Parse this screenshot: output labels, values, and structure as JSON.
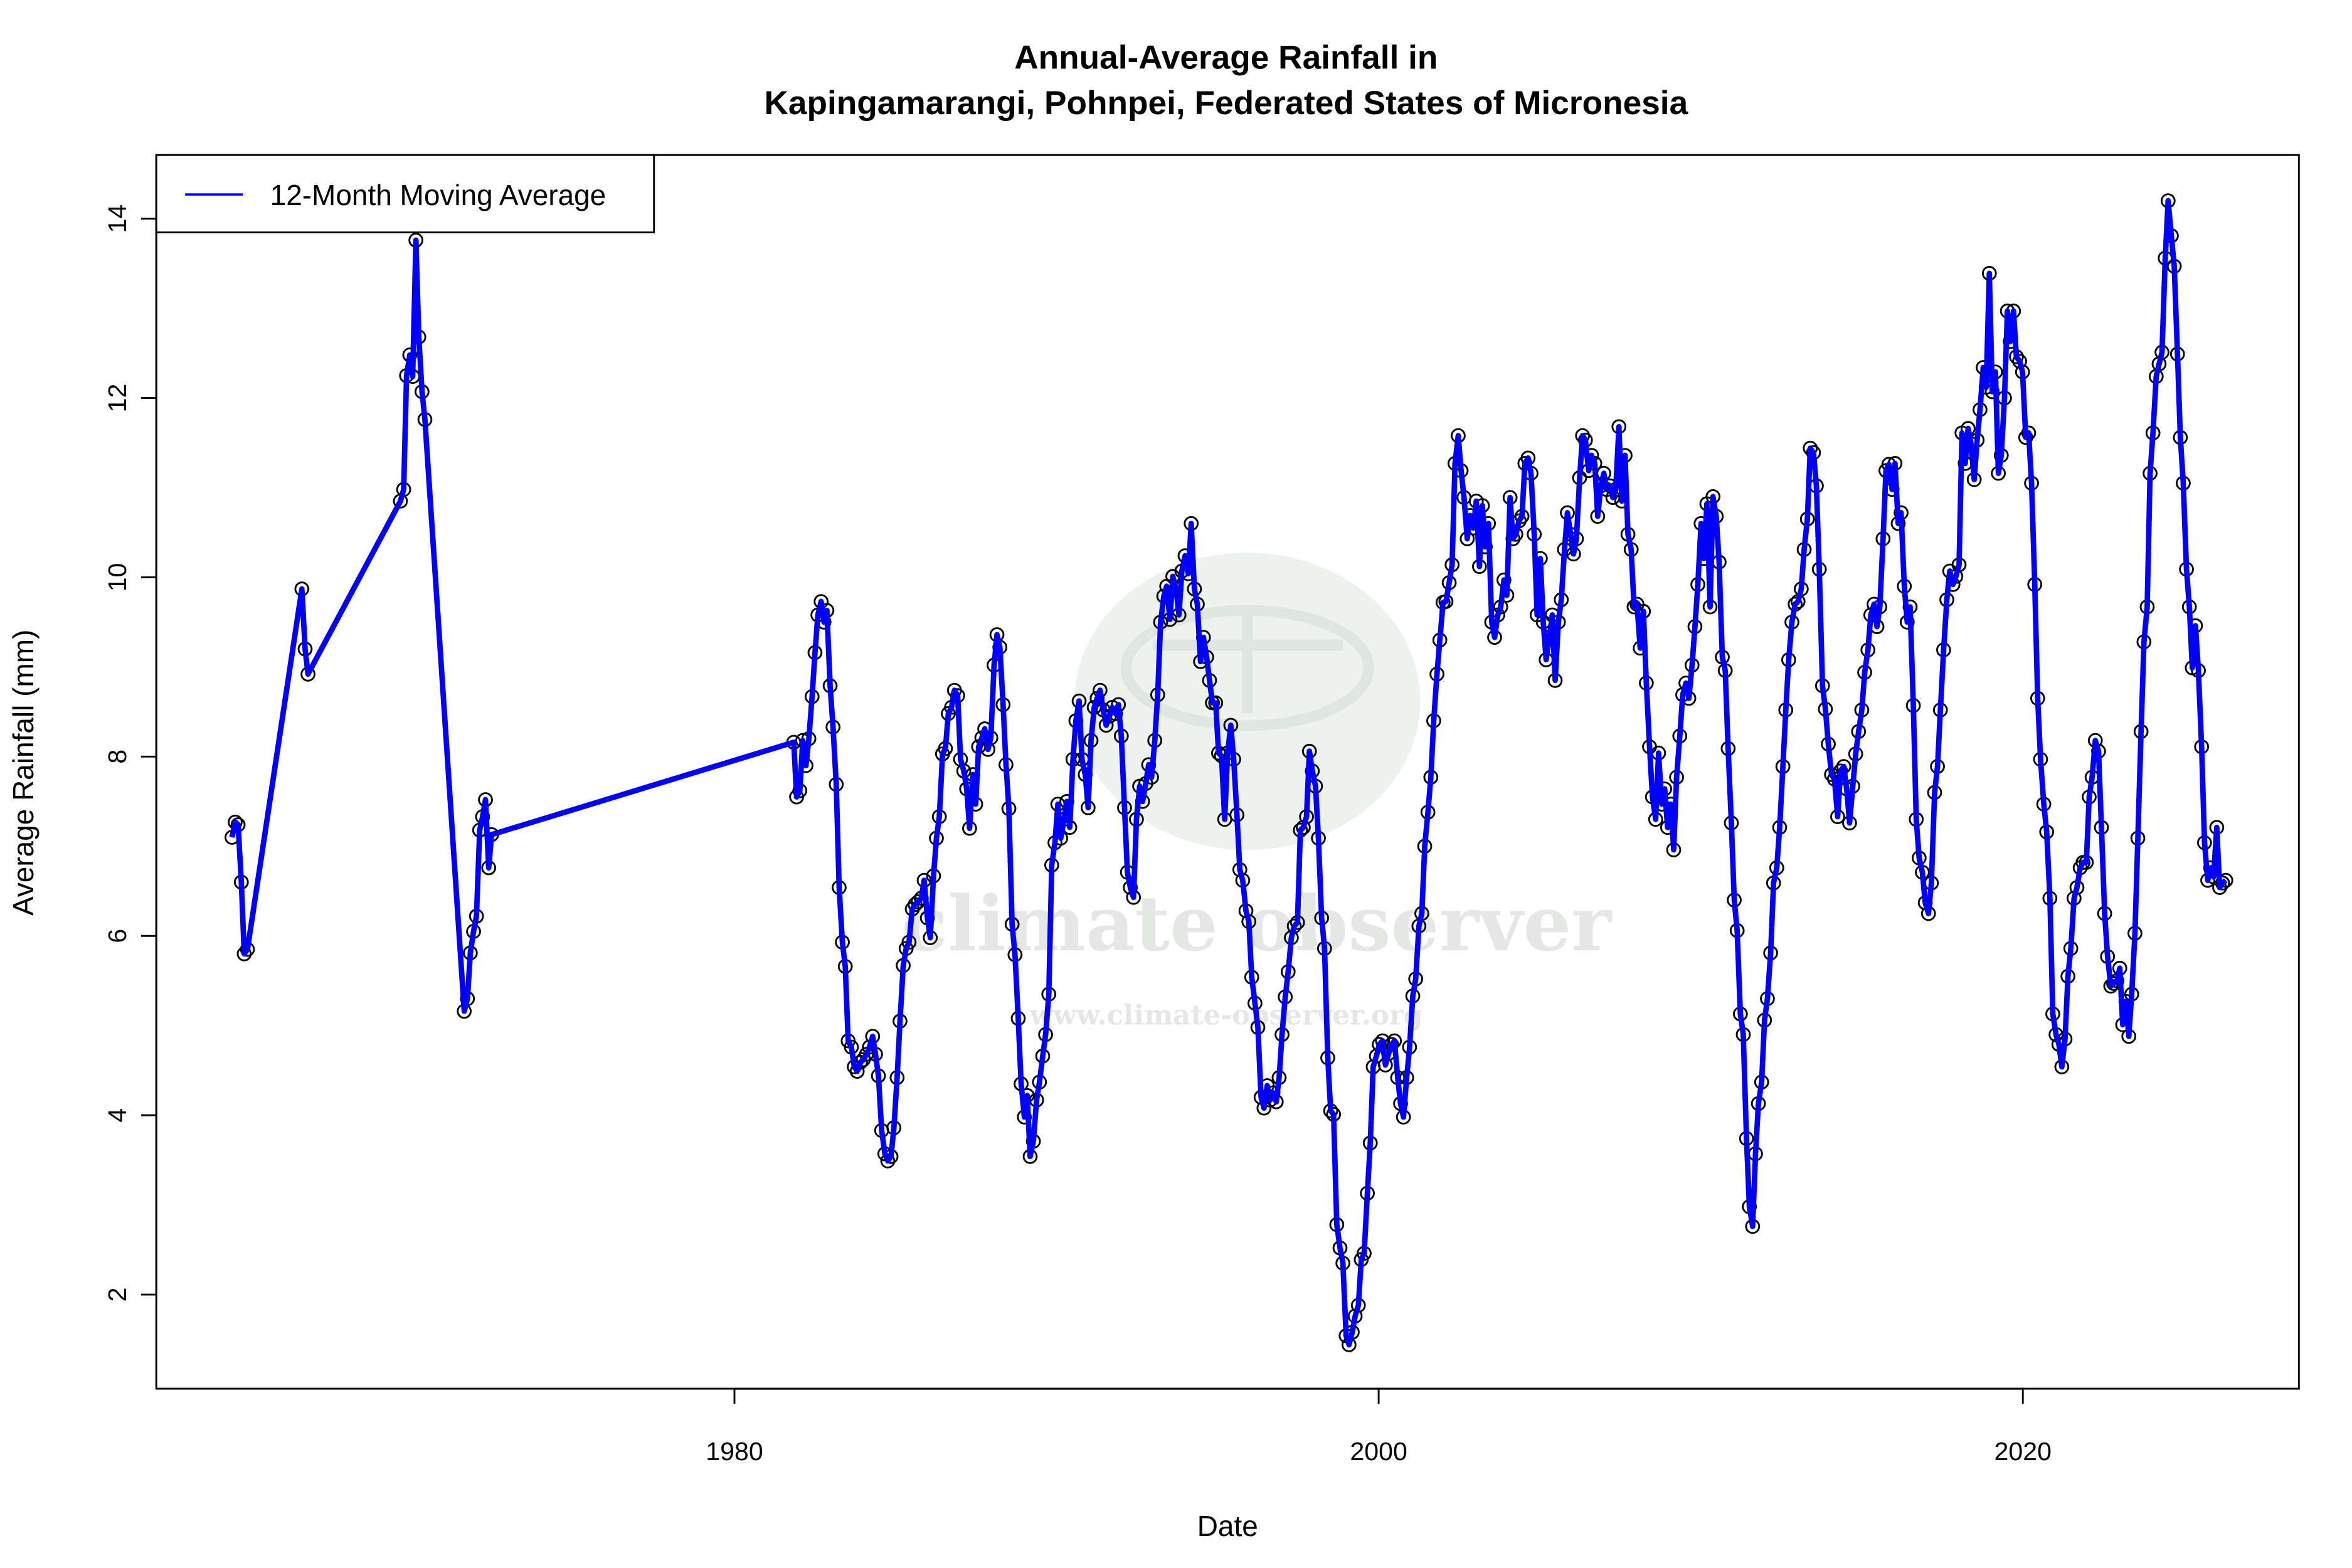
{
  "chart_data": {
    "type": "line",
    "title": "Annual-Average Rainfall in",
    "subtitle": "Kapingamarangi, Pohnpei, Federated States of Micronesia",
    "xlabel": "Date",
    "ylabel": "Average Rainfall (mm)",
    "xlim": [
      1962.05,
      2028.57
    ],
    "ylim": [
      0.95,
      14.71
    ],
    "xticks": [
      1980,
      2000,
      2020
    ],
    "yticks": [
      2,
      4,
      6,
      8,
      10,
      12,
      14
    ],
    "grid": false,
    "legend": {
      "placement": "top-left",
      "entries": [
        "12-Month Moving Average"
      ]
    },
    "markers": "open-circle",
    "colors": {
      "line": "#0000ff",
      "marker": "#000000",
      "watermark": "#e4e7e4"
    },
    "watermark": {
      "text": "climate observer",
      "url": "www.climate-observer.org"
    },
    "series": [
      {
        "name": "12-Month Moving Average",
        "x": [
          1964.4,
          1964.5,
          1964.59,
          1964.69,
          1964.78,
          1964.88,
          1966.57,
          1966.67,
          1966.76,
          1969.63,
          1969.73,
          1969.82,
          1969.92,
          1970.01,
          1970.11,
          1970.2,
          1970.3,
          1970.39,
          1971.61,
          1971.71,
          1971.8,
          1971.9,
          1971.99,
          1972.09,
          1972.18,
          1972.27,
          1972.37,
          1972.46,
          1981.84,
          1981.93,
          1982.03,
          1982.12,
          1982.22,
          1982.31,
          1982.41,
          1982.5,
          1982.59,
          1982.69,
          1982.78,
          1982.87,
          1982.97,
          1983.06,
          1983.16,
          1983.25,
          1983.35,
          1983.44,
          1983.53,
          1983.63,
          1983.72,
          1983.81,
          1983.91,
          1984.0,
          1984.1,
          1984.19,
          1984.29,
          1984.38,
          1984.47,
          1984.57,
          1984.67,
          1984.76,
          1984.86,
          1984.95,
          1985.05,
          1985.14,
          1985.24,
          1985.33,
          1985.42,
          1985.52,
          1985.61,
          1985.7,
          1985.8,
          1985.89,
          1985.99,
          1986.08,
          1986.18,
          1986.27,
          1986.36,
          1986.46,
          1986.55,
          1986.64,
          1986.74,
          1986.83,
          1986.93,
          1987.02,
          1987.12,
          1987.21,
          1987.3,
          1987.4,
          1987.49,
          1987.58,
          1987.68,
          1987.77,
          1987.87,
          1987.96,
          1988.06,
          1988.15,
          1988.24,
          1988.34,
          1988.43,
          1988.52,
          1988.62,
          1988.71,
          1988.81,
          1988.9,
          1989.0,
          1989.09,
          1989.18,
          1989.28,
          1989.38,
          1989.47,
          1989.57,
          1989.66,
          1989.76,
          1989.85,
          1989.95,
          1990.04,
          1990.13,
          1990.23,
          1990.32,
          1990.41,
          1990.51,
          1990.6,
          1990.7,
          1990.79,
          1990.89,
          1990.98,
          1991.07,
          1991.17,
          1991.26,
          1991.35,
          1991.45,
          1991.54,
          1991.64,
          1991.73,
          1991.83,
          1991.92,
          1992.01,
          1992.11,
          1992.2,
          1992.29,
          1992.39,
          1992.48,
          1992.58,
          1992.67,
          1992.77,
          1992.86,
          1992.95,
          1993.05,
          1993.14,
          1993.23,
          1993.33,
          1993.42,
          1993.52,
          1993.61,
          1993.71,
          1993.8,
          1993.89,
          1993.99,
          1994.09,
          1994.18,
          1994.28,
          1994.37,
          1994.47,
          1994.56,
          1994.66,
          1994.75,
          1994.84,
          1994.94,
          1995.03,
          1995.12,
          1995.22,
          1995.31,
          1995.41,
          1995.5,
          1995.6,
          1995.69,
          1995.78,
          1995.88,
          1995.97,
          1996.06,
          1996.16,
          1996.25,
          1996.35,
          1996.44,
          1996.54,
          1996.63,
          1996.72,
          1996.82,
          1996.91,
          1997.0,
          1997.1,
          1997.19,
          1997.29,
          1997.38,
          1997.48,
          1997.57,
          1997.66,
          1997.76,
          1997.85,
          1997.94,
          1998.04,
          1998.13,
          1998.23,
          1998.32,
          1998.42,
          1998.51,
          1998.6,
          1998.7,
          1998.8,
          1998.89,
          1998.99,
          1999.08,
          1999.18,
          1999.27,
          1999.37,
          1999.46,
          1999.55,
          1999.65,
          1999.74,
          1999.83,
          1999.93,
          2000.02,
          2000.12,
          2000.21,
          2000.31,
          2000.4,
          2000.49,
          2000.59,
          2000.68,
          2000.77,
          2000.87,
          2000.96,
          2001.06,
          2001.15,
          2001.25,
          2001.34,
          2001.43,
          2001.53,
          2001.62,
          2001.71,
          2001.81,
          2001.9,
          2002.0,
          2002.09,
          2002.19,
          2002.28,
          2002.37,
          2002.47,
          2002.56,
          2002.65,
          2002.75,
          2002.84,
          2002.94,
          2003.03,
          2003.13,
          2003.22,
          2003.31,
          2003.41,
          2003.51,
          2003.6,
          2003.7,
          2003.79,
          2003.89,
          2003.98,
          2004.08,
          2004.17,
          2004.26,
          2004.36,
          2004.45,
          2004.54,
          2004.64,
          2004.73,
          2004.83,
          2004.92,
          2005.02,
          2005.11,
          2005.2,
          2005.3,
          2005.39,
          2005.48,
          2005.58,
          2005.67,
          2005.77,
          2005.86,
          2005.96,
          2006.05,
          2006.14,
          2006.24,
          2006.33,
          2006.42,
          2006.52,
          2006.61,
          2006.71,
          2006.8,
          2006.9,
          2006.99,
          2007.08,
          2007.18,
          2007.27,
          2007.36,
          2007.46,
          2007.55,
          2007.65,
          2007.74,
          2007.84,
          2007.93,
          2008.02,
          2008.12,
          2008.22,
          2008.31,
          2008.41,
          2008.5,
          2008.6,
          2008.69,
          2008.79,
          2008.88,
          2008.97,
          2009.07,
          2009.16,
          2009.25,
          2009.35,
          2009.44,
          2009.54,
          2009.63,
          2009.73,
          2009.82,
          2009.91,
          2010.01,
          2010.1,
          2010.19,
          2010.29,
          2010.38,
          2010.48,
          2010.57,
          2010.67,
          2010.76,
          2010.85,
          2010.95,
          2011.04,
          2011.13,
          2011.23,
          2011.32,
          2011.42,
          2011.51,
          2011.61,
          2011.7,
          2011.79,
          2011.89,
          2011.98,
          2012.07,
          2012.17,
          2012.26,
          2012.36,
          2012.45,
          2012.55,
          2012.64,
          2012.73,
          2012.83,
          2012.93,
          2013.02,
          2013.12,
          2013.21,
          2013.31,
          2013.4,
          2013.5,
          2013.59,
          2013.68,
          2013.78,
          2013.87,
          2013.96,
          2014.06,
          2014.15,
          2014.25,
          2014.34,
          2014.44,
          2014.53,
          2014.62,
          2014.72,
          2014.81,
          2014.9,
          2015.0,
          2015.09,
          2015.19,
          2015.28,
          2015.38,
          2015.47,
          2015.56,
          2015.66,
          2015.75,
          2015.84,
          2015.94,
          2016.03,
          2016.13,
          2016.22,
          2016.32,
          2016.41,
          2016.5,
          2016.6,
          2016.69,
          2016.78,
          2016.88,
          2016.97,
          2017.07,
          2017.16,
          2017.26,
          2017.35,
          2017.44,
          2017.54,
          2017.64,
          2017.73,
          2017.83,
          2017.92,
          2018.02,
          2018.11,
          2018.21,
          2018.3,
          2018.39,
          2018.49,
          2018.58,
          2018.67,
          2018.77,
          2018.86,
          2018.96,
          2019.05,
          2019.15,
          2019.24,
          2019.33,
          2019.43,
          2019.52,
          2019.61,
          2019.71,
          2019.8,
          2019.9,
          2019.99,
          2020.09,
          2020.18,
          2020.27,
          2020.37,
          2020.46,
          2020.55,
          2020.65,
          2020.74,
          2020.84,
          2020.93,
          2021.03,
          2021.12,
          2021.21,
          2021.31,
          2021.4,
          2021.49,
          2021.59,
          2021.68,
          2021.78,
          2021.87,
          2021.97,
          2022.06,
          2022.15,
          2022.25,
          2022.35,
          2022.44,
          2022.54,
          2022.63,
          2022.73,
          2022.82,
          2022.92,
          2023.01,
          2023.1,
          2023.2,
          2023.29,
          2023.38,
          2023.48,
          2023.57,
          2023.67,
          2023.76,
          2023.86,
          2023.95,
          2024.04,
          2024.14,
          2024.23,
          2024.32,
          2024.42,
          2024.51,
          2024.61,
          2024.7,
          2024.8,
          2024.89,
          2024.98,
          2025.08,
          2025.17,
          2025.26,
          2025.36,
          2025.45,
          2025.55,
          2025.64,
          2025.74,
          2025.83,
          2025.92,
          2026.02,
          2026.11,
          2026.2,
          2026.3
        ],
        "y": [
          7.1,
          7.27,
          7.24,
          6.6,
          5.8,
          5.85,
          9.87,
          9.2,
          8.92,
          10.85,
          10.98,
          12.25,
          12.48,
          12.24,
          13.76,
          12.68,
          12.07,
          11.76,
          5.16,
          5.3,
          5.81,
          6.05,
          6.22,
          7.18,
          7.33,
          7.52,
          6.76,
          7.13,
          8.16,
          7.55,
          7.62,
          8.18,
          7.9,
          8.2,
          8.67,
          9.16,
          9.58,
          9.73,
          9.5,
          9.63,
          8.79,
          8.33,
          7.69,
          6.54,
          5.93,
          5.66,
          4.83,
          4.76,
          4.54,
          4.49,
          4.59,
          4.62,
          4.68,
          4.76,
          4.88,
          4.68,
          4.44,
          3.83,
          3.57,
          3.49,
          3.54,
          3.86,
          4.42,
          5.05,
          5.67,
          5.86,
          5.93,
          6.3,
          6.35,
          6.38,
          6.42,
          6.62,
          6.2,
          5.98,
          6.67,
          7.09,
          7.33,
          8.03,
          8.09,
          8.48,
          8.55,
          8.74,
          8.68,
          7.97,
          7.84,
          7.64,
          7.2,
          7.8,
          7.47,
          8.11,
          8.21,
          8.31,
          8.08,
          8.21,
          9.02,
          9.36,
          9.22,
          8.58,
          7.91,
          7.42,
          6.13,
          5.79,
          5.08,
          4.35,
          3.98,
          4.22,
          3.54,
          3.71,
          4.17,
          4.37,
          4.66,
          4.9,
          5.35,
          6.79,
          7.04,
          7.47,
          7.09,
          7.3,
          7.5,
          7.21,
          7.97,
          8.4,
          8.62,
          7.97,
          7.8,
          7.43,
          8.18,
          8.55,
          8.65,
          8.74,
          8.52,
          8.35,
          8.45,
          8.55,
          8.48,
          8.58,
          8.23,
          7.43,
          6.71,
          6.54,
          6.43,
          7.3,
          7.67,
          7.5,
          7.7,
          7.91,
          7.77,
          8.18,
          8.69,
          9.5,
          9.79,
          9.9,
          9.53,
          10.01,
          9.87,
          9.58,
          10.07,
          10.24,
          10.04,
          10.6,
          9.87,
          9.7,
          9.06,
          9.33,
          9.11,
          8.85,
          8.6,
          8.6,
          8.04,
          8.01,
          7.3,
          8.04,
          8.35,
          7.97,
          7.35,
          6.74,
          6.62,
          6.28,
          6.16,
          5.54,
          5.25,
          4.98,
          4.2,
          4.08,
          4.33,
          4.17,
          4.25,
          4.15,
          4.42,
          4.9,
          5.32,
          5.6,
          5.98,
          6.11,
          6.15,
          7.18,
          7.21,
          7.33,
          8.06,
          7.84,
          7.67,
          7.09,
          6.2,
          5.86,
          4.64,
          4.05,
          4.01,
          2.78,
          2.52,
          2.35,
          1.54,
          1.44,
          1.58,
          1.76,
          1.88,
          2.39,
          2.46,
          3.13,
          3.69,
          4.54,
          4.66,
          4.79,
          4.83,
          4.56,
          4.69,
          4.79,
          4.83,
          4.42,
          4.13,
          3.98,
          4.42,
          4.76,
          5.33,
          5.52,
          6.11,
          6.25,
          7.0,
          7.38,
          7.77,
          8.4,
          8.92,
          9.3,
          9.72,
          9.73,
          9.94,
          10.14,
          11.27,
          11.58,
          11.19,
          10.89,
          10.43,
          10.69,
          10.55,
          10.85,
          10.12,
          10.8,
          10.34,
          10.6,
          9.5,
          9.33,
          9.58,
          9.67,
          9.97,
          9.8,
          10.89,
          10.43,
          10.48,
          10.63,
          10.68,
          11.27,
          11.33,
          11.16,
          10.48,
          9.58,
          10.21,
          9.5,
          9.08,
          9.33,
          9.58,
          8.85,
          9.5,
          9.75,
          10.31,
          10.72,
          10.48,
          10.26,
          10.43,
          11.11,
          11.58,
          11.53,
          11.19,
          11.36,
          11.27,
          10.68,
          11.02,
          11.16,
          10.98,
          11.02,
          10.89,
          10.98,
          11.68,
          10.85,
          11.36,
          10.48,
          10.31,
          9.67,
          9.7,
          9.21,
          9.62,
          8.82,
          8.11,
          7.55,
          7.3,
          8.04,
          7.47,
          7.64,
          7.21,
          7.47,
          6.96,
          7.77,
          8.23,
          8.69,
          8.82,
          8.65,
          9.02,
          9.45,
          9.92,
          10.6,
          10.21,
          10.82,
          9.67,
          10.9,
          10.68,
          10.17,
          9.11,
          8.96,
          8.09,
          7.26,
          6.4,
          6.06,
          5.13,
          4.9,
          3.74,
          2.98,
          2.76,
          3.57,
          4.13,
          4.37,
          5.06,
          5.3,
          5.81,
          6.59,
          6.76,
          7.21,
          7.89,
          8.52,
          9.08,
          9.5,
          9.7,
          9.73,
          9.87,
          10.31,
          10.65,
          11.44,
          11.39,
          11.02,
          10.09,
          8.79,
          8.53,
          8.14,
          7.8,
          7.75,
          7.33,
          7.84,
          7.89,
          7.64,
          7.26,
          7.67,
          8.03,
          8.28,
          8.52,
          8.94,
          9.19,
          9.58,
          9.7,
          9.45,
          9.67,
          10.43,
          11.19,
          11.26,
          10.98,
          11.27,
          10.6,
          10.72,
          9.9,
          9.5,
          9.67,
          8.57,
          7.3,
          6.87,
          6.71,
          6.37,
          6.25,
          6.59,
          7.6,
          7.89,
          8.52,
          9.19,
          9.75,
          10.07,
          9.92,
          10.01,
          10.14,
          11.61,
          11.27,
          11.66,
          11.49,
          11.09,
          11.53,
          11.87,
          12.34,
          12.12,
          13.39,
          12.07,
          12.29,
          11.16,
          11.36,
          12.0,
          12.97,
          12.63,
          12.97,
          12.46,
          12.41,
          12.29,
          11.56,
          11.61,
          11.05,
          9.92,
          8.65,
          7.97,
          7.47,
          7.16,
          6.42,
          5.13,
          4.9,
          4.79,
          4.54,
          4.85,
          5.55,
          5.86,
          6.42,
          6.54,
          6.76,
          6.82,
          6.82,
          7.55,
          7.77,
          8.18,
          8.06,
          7.21,
          6.25,
          5.77,
          5.44,
          5.47,
          5.5,
          5.64,
          5.01,
          5.27,
          4.88,
          5.35,
          6.03,
          7.09,
          8.28,
          9.28,
          9.67,
          11.16,
          11.61,
          12.24,
          12.38,
          12.51,
          13.56,
          14.2,
          13.81,
          13.47,
          12.49,
          11.56,
          11.05,
          10.09,
          9.67,
          8.99,
          9.46,
          8.96,
          8.11,
          7.04,
          6.62,
          6.76,
          6.66,
          7.21,
          6.54,
          6.59,
          6.62
        ]
      }
    ]
  }
}
